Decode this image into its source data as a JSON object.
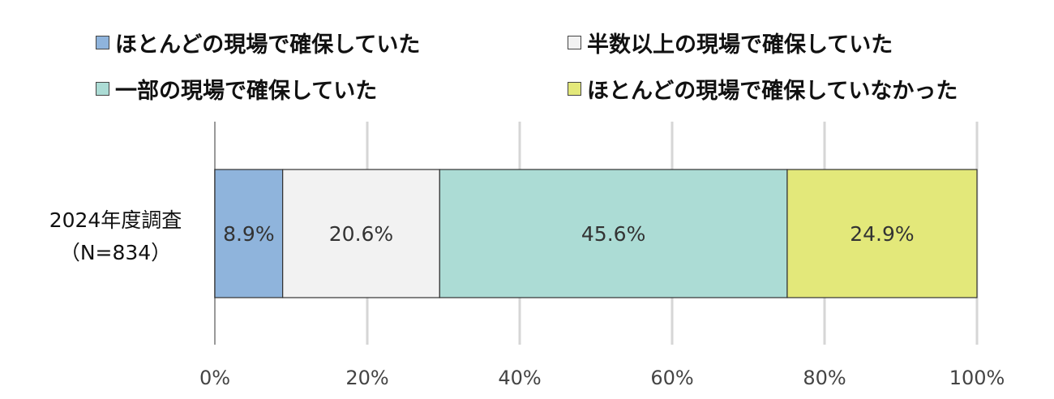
{
  "chart_data": {
    "type": "bar",
    "orientation": "horizontal",
    "stacked": true,
    "categories": [
      "2024年度調査"
    ],
    "category_sublabels": [
      "（N=834）"
    ],
    "series": [
      {
        "name": "ほとんどの現場で確保していた",
        "values": [
          8.9
        ],
        "label": "8.9%",
        "color": "#8fb4dc"
      },
      {
        "name": "半数以上の現場で確保していた",
        "values": [
          20.6
        ],
        "label": "20.6%",
        "color": "#f2f2f2"
      },
      {
        "name": "一部の現場で確保していた",
        "values": [
          45.6
        ],
        "label": "45.6%",
        "color": "#acdcd5"
      },
      {
        "name": "ほとんどの現場で確保していなかった",
        "values": [
          24.9
        ],
        "label": "24.9%",
        "color": "#e3e87a"
      }
    ],
    "xlim": [
      0,
      100
    ],
    "xticks": [
      "0%",
      "20%",
      "40%",
      "60%",
      "80%",
      "100%"
    ],
    "grid": true,
    "legend_position": "top"
  }
}
